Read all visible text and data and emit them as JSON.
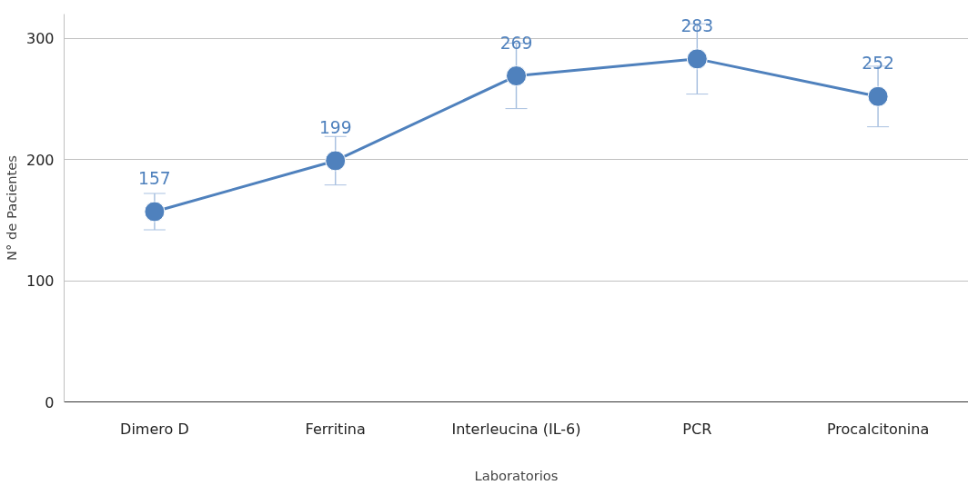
{
  "chart_data": {
    "type": "line",
    "xlabel": "Laboratorios",
    "ylabel": "N° de Pacientes",
    "categories": [
      "Dimero D",
      "Ferritina",
      "Interleucina (IL-6)",
      "PCR",
      "Procalcitonina"
    ],
    "series": [
      {
        "color": "#4f81bd",
        "values": [
          157,
          199,
          269,
          283,
          252
        ],
        "errors": [
          15,
          20,
          27,
          29,
          25
        ]
      }
    ],
    "ylim": [
      0,
      320
    ],
    "yticks": [
      0,
      100,
      200,
      300
    ],
    "grid": "y",
    "data_labels": true,
    "marker": "circle",
    "line_style": "solid"
  }
}
